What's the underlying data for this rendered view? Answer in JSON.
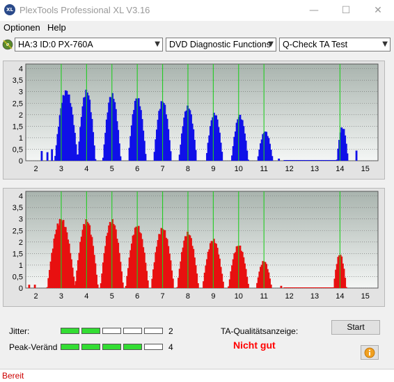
{
  "window": {
    "title": "PlexTools Professional XL V3.16",
    "app_icon_text": "XL",
    "minimize": "—",
    "maximize": "☐",
    "close": "✕"
  },
  "menu": {
    "items": [
      "Optionen",
      "Help"
    ]
  },
  "toolbar": {
    "drive": "HA:3 ID:0  PX-760A",
    "function": "DVD Diagnostic Functions",
    "test": "Q-Check  TA Test"
  },
  "chart_data": [
    {
      "type": "bar",
      "name": "upper",
      "color": "#1010e8",
      "x_ticks": [
        2,
        3,
        4,
        5,
        6,
        7,
        8,
        9,
        10,
        11,
        12,
        13,
        14,
        15
      ],
      "y_ticks": [
        "0",
        "0,5",
        "1",
        "1,5",
        "2",
        "2,5",
        "3",
        "3,5",
        "4"
      ],
      "xlim": [
        1.6,
        15.5
      ],
      "ylim": [
        0,
        4.2
      ],
      "grid_lines_x": [
        3,
        4,
        5,
        6,
        7,
        8,
        9,
        10,
        11,
        14
      ],
      "peaks": [
        {
          "center": 3.2,
          "height": 3.1,
          "width": 0.45
        },
        {
          "center": 4.0,
          "height": 3.1,
          "width": 0.35
        },
        {
          "center": 5.0,
          "height": 2.95,
          "width": 0.35
        },
        {
          "center": 6.0,
          "height": 2.8,
          "width": 0.35
        },
        {
          "center": 7.0,
          "height": 2.65,
          "width": 0.35
        },
        {
          "center": 8.0,
          "height": 2.4,
          "width": 0.35
        },
        {
          "center": 9.05,
          "height": 2.1,
          "width": 0.33
        },
        {
          "center": 10.05,
          "height": 2.0,
          "width": 0.33
        },
        {
          "center": 11.05,
          "height": 1.3,
          "width": 0.3
        },
        {
          "center": 14.1,
          "height": 1.5,
          "width": 0.22
        }
      ],
      "spurs": [
        [
          2.25,
          0.45
        ],
        [
          2.45,
          0.4
        ],
        [
          2.65,
          0.5
        ],
        [
          11.6,
          0.1
        ],
        [
          14.65,
          0.45
        ]
      ]
    },
    {
      "type": "bar",
      "name": "lower",
      "color": "#e81010",
      "x_ticks": [
        2,
        3,
        4,
        5,
        6,
        7,
        8,
        9,
        10,
        11,
        12,
        13,
        14,
        15
      ],
      "y_ticks": [
        "0",
        "0,5",
        "1",
        "1,5",
        "2",
        "2,5",
        "3",
        "3,5",
        "4"
      ],
      "xlim": [
        1.6,
        15.5
      ],
      "ylim": [
        0,
        4.2
      ],
      "grid_lines_x": [
        3,
        4,
        5,
        6,
        7,
        8,
        9,
        10,
        11,
        14
      ],
      "peaks": [
        {
          "center": 3.0,
          "height": 3.05,
          "width": 0.55
        },
        {
          "center": 4.0,
          "height": 3.0,
          "width": 0.45
        },
        {
          "center": 5.0,
          "height": 3.0,
          "width": 0.45
        },
        {
          "center": 6.0,
          "height": 2.75,
          "width": 0.45
        },
        {
          "center": 7.0,
          "height": 2.65,
          "width": 0.45
        },
        {
          "center": 8.0,
          "height": 2.45,
          "width": 0.42
        },
        {
          "center": 9.0,
          "height": 2.15,
          "width": 0.42
        },
        {
          "center": 10.0,
          "height": 1.9,
          "width": 0.4
        },
        {
          "center": 11.0,
          "height": 1.2,
          "width": 0.3
        },
        {
          "center": 14.0,
          "height": 1.5,
          "width": 0.25
        }
      ],
      "spurs": [
        [
          1.75,
          0.15
        ],
        [
          1.95,
          0.15
        ],
        [
          11.7,
          0.1
        ]
      ]
    }
  ],
  "bottom": {
    "jitter_label": "Jitter:",
    "jitter_value": "2",
    "jitter_level": 2,
    "peak_label": "Peak-Veränd",
    "peak_value": "4",
    "peak_level": 4,
    "segments": 5,
    "ta_label": "TA-Qualitätsanzeige:",
    "ta_result": "Nicht gut",
    "ta_result_color": "#ff0000",
    "start_button": "Start",
    "info_icon": "info-icon"
  },
  "status": {
    "text": "Bereit"
  }
}
